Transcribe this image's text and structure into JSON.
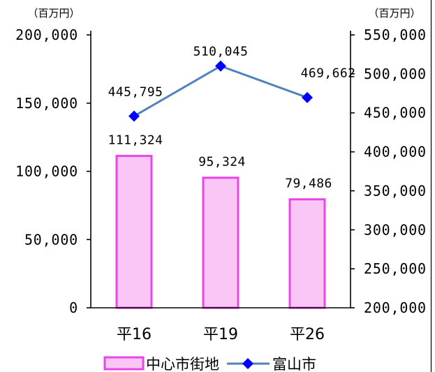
{
  "chart_data": {
    "type": "bar",
    "categories": [
      "平16",
      "平19",
      "平26"
    ],
    "series": [
      {
        "name": "中心市街地",
        "type": "bar",
        "axis": "left",
        "values": [
          111324,
          95324,
          79486
        ],
        "labels": [
          "111,324",
          "95,324",
          "79,486"
        ],
        "color": "#fac6f6",
        "border_color": "#e946e6"
      },
      {
        "name": "富山市",
        "type": "line",
        "axis": "right",
        "values": [
          445795,
          510045,
          469662
        ],
        "labels": [
          "445,795",
          "510,045",
          "469,662"
        ],
        "color": "#4f81bd",
        "marker": "diamond",
        "marker_color": "#0000ff"
      }
    ],
    "y_left": {
      "unit": "（百万円）",
      "ylim": [
        0,
        200000
      ],
      "ticks": [
        0,
        50000,
        100000,
        150000,
        200000
      ],
      "tick_labels": [
        "0",
        "50,000",
        "100,000",
        "150,000",
        "200,000"
      ]
    },
    "y_right": {
      "unit": "（百万円）",
      "ylim": [
        200000,
        550000
      ],
      "ticks": [
        200000,
        250000,
        300000,
        350000,
        400000,
        450000,
        500000,
        550000
      ],
      "tick_labels": [
        "200,000",
        "250,000",
        "300,000",
        "350,000",
        "400,000",
        "450,000",
        "500,000",
        "550,000"
      ]
    },
    "grid": false,
    "legend_position": "bottom"
  }
}
